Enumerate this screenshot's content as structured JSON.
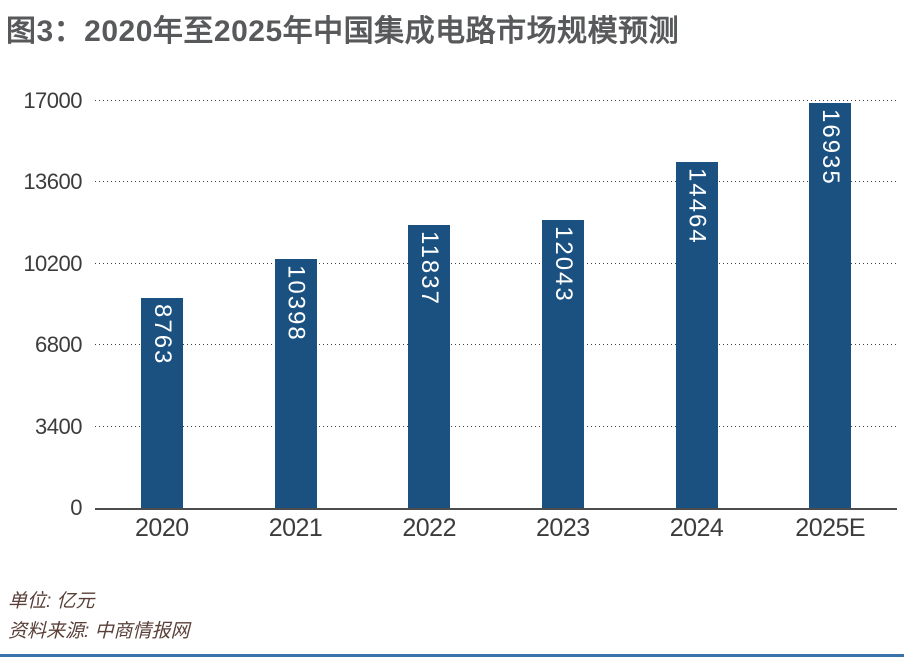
{
  "title": "图3：2020年至2025年中国集成电路市场规模预测",
  "chart_data": {
    "type": "bar",
    "title": "图3：2020年至2025年中国集成电路市场规模预测",
    "categories": [
      "2020",
      "2021",
      "2022",
      "2023",
      "2024",
      "2025E"
    ],
    "values": [
      8763,
      10398,
      11837,
      12043,
      14464,
      16935
    ],
    "xlabel": "",
    "ylabel": "",
    "yticks": [
      0,
      3400,
      6800,
      10200,
      13600,
      17000
    ],
    "ylim": [
      0,
      17000
    ],
    "grid": "horizontal-dotted",
    "legend": "none",
    "bar_color": "#1b5181",
    "value_label_color": "#ffffff",
    "value_label_orientation": "vertical-rotated-90cw"
  },
  "footer": {
    "unit_label": "单位: 亿元",
    "source_label": "资料来源: 中商情报网"
  },
  "colors": {
    "bar": "#1b5181",
    "title_text": "#58595b",
    "axis_text": "#3c3c3c",
    "footer_text": "#5a4038",
    "bottom_accent": "#3a72aa",
    "background": "#ffffff"
  }
}
